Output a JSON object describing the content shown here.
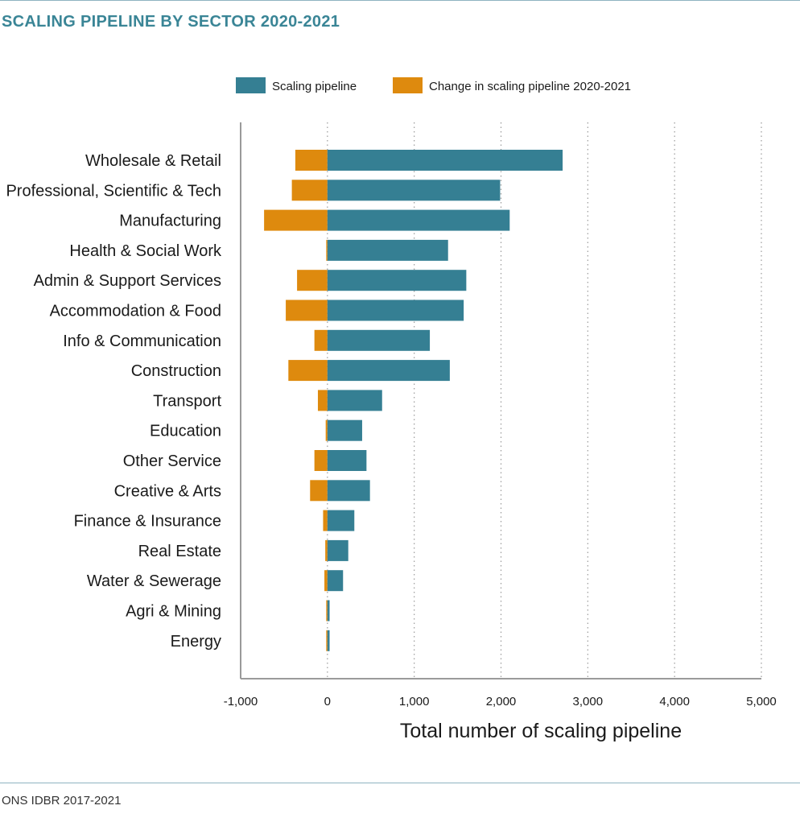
{
  "title": "SCALING PIPELINE BY SECTOR 2020-2021",
  "source": "ONS IDBR 2017-2021",
  "colors": {
    "scaling": "#357f93",
    "change": "#de8a0e",
    "title": "#3a8596",
    "rule": "#8fb3c0"
  },
  "chart_data": {
    "type": "bar",
    "orientation": "horizontal",
    "stacked": false,
    "title": "SCALING PIPELINE BY SECTOR 2020-2021",
    "xlabel": "Total number of scaling pipeline",
    "ylabel": "",
    "xlim": [
      -1000,
      5000
    ],
    "xticks": [
      "-1,000",
      "0",
      "1,000",
      "2,000",
      "3,000",
      "4,000",
      "5,000"
    ],
    "grid": "vertical dotted",
    "legend_position": "top",
    "categories": [
      "Wholesale & Retail",
      "Professional, Scientific & Tech",
      "Manufacturing",
      "Health & Social Work",
      "Admin & Support Services",
      "Accommodation & Food",
      "Info & Communication",
      "Construction",
      "Transport",
      "Education",
      "Other Service",
      "Creative & Arts",
      "Finance & Insurance",
      "Real Estate",
      "Water & Sewerage",
      "Agri & Mining",
      "Energy"
    ],
    "series": [
      {
        "name": "Scaling pipeline",
        "values": [
          2710,
          1990,
          2100,
          1390,
          1600,
          1570,
          1180,
          1410,
          630,
          400,
          450,
          490,
          310,
          240,
          180,
          25,
          25
        ]
      },
      {
        "name": "Change in scaling pipeline 2020-2021",
        "values": [
          -370,
          -410,
          -730,
          -10,
          -350,
          -480,
          -150,
          -450,
          -110,
          -20,
          -150,
          -200,
          -50,
          -25,
          -35,
          -5,
          -5
        ]
      }
    ]
  }
}
